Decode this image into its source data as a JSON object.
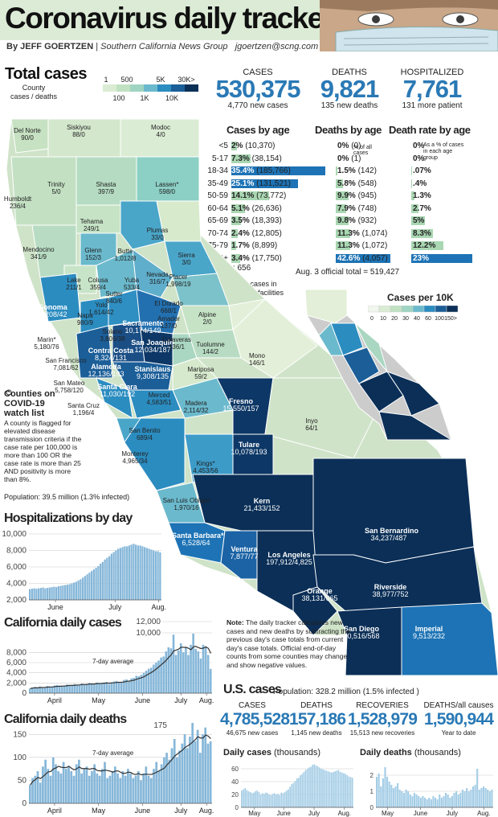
{
  "header": {
    "title": "Coronavirus daily tracker",
    "byline_name": "By JEFF GOERTZEN",
    "byline_org": "Southern California News Group",
    "byline_email": "jgoertzen@scng.com"
  },
  "total": {
    "title": "Total cases",
    "legend_label": "County\ncases / deaths",
    "legend_top": [
      "1",
      "500",
      "5K",
      "30K>"
    ],
    "legend_bottom": [
      "100",
      "1K",
      "10K"
    ]
  },
  "stats": {
    "cases": {
      "label": "CASES",
      "value": "530,375",
      "sub": "4,770 new cases"
    },
    "deaths": {
      "label": "DEATHS",
      "value": "9,821",
      "sub": "135 new deaths"
    },
    "hosp": {
      "label": "HOSPITALIZED",
      "value": "7,761",
      "sub": "131 more patient"
    }
  },
  "age": {
    "cases_title": "Cases by age",
    "deaths_title": "Deaths by age",
    "rate_title": "Death rate by age",
    "deaths_note": "% of all cases",
    "rate_note": "As a % of cases in each age group",
    "missing": "Missing: 656",
    "official": "Aug. 3 official total = 519,427",
    "rows": [
      {
        "age": "<5",
        "cpct": "2%",
        "ccnt": "(10,370)",
        "cv": 2,
        "dpct": "0%",
        "dcnt": "(0)",
        "dv": 0,
        "rate": "0%",
        "rv": 0
      },
      {
        "age": "5-17",
        "cpct": "7.3%",
        "ccnt": "(38,154)",
        "cv": 7.3,
        "dpct": "0%",
        "dcnt": "(1)",
        "dv": 0,
        "rate": "0%",
        "rv": 0
      },
      {
        "age": "18-34",
        "cpct": "35.4%",
        "ccnt": "(185,766)",
        "cv": 35.4,
        "dpct": "1.5%",
        "dcnt": "(142)",
        "dv": 1.5,
        "rate": ".07%",
        "rv": 0.07
      },
      {
        "age": "35-49",
        "cpct": "25.1%",
        "ccnt": "(131,521)",
        "cv": 25.1,
        "dpct": "5.8%",
        "dcnt": "(548)",
        "dv": 5.8,
        "rate": ".4%",
        "rv": 0.4
      },
      {
        "age": "50-59",
        "cpct": "14.1%",
        "ccnt": "(73,772)",
        "cv": 14.1,
        "dpct": "9.9%",
        "dcnt": "(945)",
        "dv": 9.9,
        "rate": "1.3%",
        "rv": 1.3
      },
      {
        "age": "60-64",
        "cpct": "5.1%",
        "ccnt": "(26,636)",
        "cv": 5.1,
        "dpct": "7.9%",
        "dcnt": "(748)",
        "dv": 7.9,
        "rate": "2.7%",
        "rv": 2.7
      },
      {
        "age": "65-69",
        "cpct": "3.5%",
        "ccnt": "(18,393)",
        "cv": 3.5,
        "dpct": "9.8%",
        "dcnt": "(932)",
        "dv": 9.8,
        "rate": "5%",
        "rv": 5
      },
      {
        "age": "70-74",
        "cpct": "2.4%",
        "ccnt": "(12,805)",
        "cv": 2.4,
        "dpct": "11.3%",
        "dcnt": "(1,074)",
        "dv": 11.3,
        "rate": "8.3%",
        "rv": 8.3
      },
      {
        "age": "75-79",
        "cpct": "1.7%",
        "ccnt": "(8,899)",
        "cv": 1.7,
        "dpct": "11.3%",
        "dcnt": "(1,072)",
        "dv": 11.3,
        "rate": "12.2%",
        "rv": 12.2
      },
      {
        "age": "80+",
        "cpct": "3.4%",
        "ccnt": "(17,750)",
        "cv": 3.4,
        "dpct": "42.6%",
        "dcnt": "(4,057)",
        "dv": 42.6,
        "rate": "23%",
        "rv": 23
      }
    ]
  },
  "map": {
    "includes": "*Includes cases in correctional facilities",
    "per10k_title": "Cases per 10K",
    "per10k_ticks": [
      "0",
      "10",
      "20",
      "30",
      "40",
      "60",
      "100",
      "150>"
    ],
    "watch_title": "Counties on COVID-19 watch list",
    "watch_text": "A county is flagged for elevated disease transmission criteria if the case rate per 100,000 is more than 100 OR the case rate is more than 25 AND positivity is more than 8%.",
    "population": "Population: 39.5 million (1.3% infected)",
    "counties": [
      {
        "n": "Del Norte",
        "v": "90/0"
      },
      {
        "n": "Siskiyou",
        "v": "88/0"
      },
      {
        "n": "Modoc",
        "v": "4/0"
      },
      {
        "n": "Trinity",
        "v": "5/0"
      },
      {
        "n": "Shasta",
        "v": "397/9"
      },
      {
        "n": "Lassen*",
        "v": "598/0"
      },
      {
        "n": "Humboldt",
        "v": "236/4"
      },
      {
        "n": "Tehama",
        "v": "249/1"
      },
      {
        "n": "Plumas",
        "v": "33/0"
      },
      {
        "n": "Mendocino",
        "v": "341/9"
      },
      {
        "n": "Glenn",
        "v": "152/3"
      },
      {
        "n": "Butte",
        "v": "1,012/8"
      },
      {
        "n": "Sierra",
        "v": "3/0"
      },
      {
        "n": "Nevada",
        "v": "316/7"
      },
      {
        "n": "Colusa",
        "v": "359/4"
      },
      {
        "n": "Lake",
        "v": "211/1"
      },
      {
        "n": "Yuba",
        "v": "533/4"
      },
      {
        "n": "Placer",
        "v": "1,998/19"
      },
      {
        "n": "Sutter",
        "v": "840/6"
      },
      {
        "n": "El Dorado",
        "v": "668/1"
      },
      {
        "n": "Sonoma",
        "v": "3,208/42"
      },
      {
        "n": "Yolo",
        "v": "1,614/42"
      },
      {
        "n": "Napa",
        "v": "980/9"
      },
      {
        "n": "Sacramento",
        "v": "10,174/149"
      },
      {
        "n": "Alpine",
        "v": "2/0"
      },
      {
        "n": "Amador",
        "v": "137/0"
      },
      {
        "n": "Solano",
        "v": "3,806/38"
      },
      {
        "n": "Marin*",
        "v": "5,180/76"
      },
      {
        "n": "Contra Costa",
        "v": "8,324/131"
      },
      {
        "n": "San Joaquin",
        "v": "12,034/187"
      },
      {
        "n": "Calaveras",
        "v": "136/1"
      },
      {
        "n": "Tuolumne",
        "v": "144/2"
      },
      {
        "n": "San Francisco",
        "v": "7,081/62"
      },
      {
        "n": "Mono",
        "v": "146/1"
      },
      {
        "n": "Alameda",
        "v": "12,136/193"
      },
      {
        "n": "Stanislaus",
        "v": "9,308/135"
      },
      {
        "n": "Mariposa",
        "v": "59/2"
      },
      {
        "n": "San Mateo",
        "v": "5,758/120"
      },
      {
        "n": "Santa Clara",
        "v": "11,030/192"
      },
      {
        "n": "Merced",
        "v": "4,583/51"
      },
      {
        "n": "Santa Cruz",
        "v": "1,196/4"
      },
      {
        "n": "Madera",
        "v": "2,114/32"
      },
      {
        "n": "Fresno",
        "v": "15,550/157"
      },
      {
        "n": "Inyo",
        "v": "64/1"
      },
      {
        "n": "San Benito",
        "v": "689/4"
      },
      {
        "n": "Tulare",
        "v": "10,078/193"
      },
      {
        "n": "Monterey",
        "v": "4,965/34"
      },
      {
        "n": "Kings*",
        "v": "4,453/56"
      },
      {
        "n": "Kern",
        "v": "21,433/152"
      },
      {
        "n": "San Luis Obispo",
        "v": "1,970/16"
      },
      {
        "n": "San Bernardino",
        "v": "34,237/487"
      },
      {
        "n": "Santa Barbara*",
        "v": "6,528/64"
      },
      {
        "n": "Ventura",
        "v": "7,877/77"
      },
      {
        "n": "Los Angeles",
        "v": "197,912/4,825"
      },
      {
        "n": "Riverside",
        "v": "38,977/752"
      },
      {
        "n": "Orange",
        "v": "38,131/665"
      },
      {
        "n": "San Diego",
        "v": "30,516/568"
      },
      {
        "n": "Imperial",
        "v": "9,513/232"
      }
    ]
  },
  "note": {
    "head": "Note:",
    "body": "The daily tracker calculates new cases and new deaths by subtracting the previous day's case totals from current day's case totals. Official end-of-day counts from some counties may change and show negative values."
  },
  "us": {
    "title": "U.S. cases",
    "population": "Population: 328.2 million (1.5% infected )",
    "cases": {
      "label": "CASES",
      "value": "4,785,528",
      "sub": "46,675  new cases"
    },
    "deaths": {
      "label": "DEATHS",
      "value": "157,186",
      "sub": "1,145 new deaths"
    },
    "recoveries": {
      "label": "RECOVERIES",
      "value": "1,528,979",
      "sub": "15,513 new recoveries"
    },
    "allcauses": {
      "label": "DEATHS/all causes",
      "value": "1,590,944",
      "sub": "Year to date"
    }
  },
  "chart_data": [
    {
      "type": "bar",
      "title": "Hospitalizations by day",
      "y_ticks": [
        "10,000",
        "8,000",
        "6,000",
        "4,000",
        "2,000"
      ],
      "x_ticks": [
        "June",
        "July",
        "Aug."
      ],
      "ylim": [
        2000,
        10000
      ],
      "values": [
        3300,
        3350,
        3400,
        3350,
        3400,
        3450,
        3500,
        3400,
        3450,
        3500,
        3550,
        3600,
        3550,
        3650,
        3700,
        3750,
        3800,
        3850,
        3900,
        4000,
        4100,
        4200,
        4350,
        4500,
        4700,
        4900,
        5100,
        5300,
        5500,
        5700,
        5900,
        6100,
        6400,
        6600,
        6900,
        7100,
        7300,
        7600,
        7800,
        8000,
        8200,
        8300,
        8400,
        8500,
        8500,
        8600,
        8700,
        8800,
        8700,
        8600,
        8600,
        8500,
        8400,
        8300,
        8200,
        8100,
        8000,
        7900,
        7900,
        7761
      ]
    },
    {
      "type": "bar",
      "title": "California daily cases",
      "y_ticks": [
        "8,000",
        "6,000",
        "4,000",
        "2,000",
        "0"
      ],
      "extra_ticks": [
        "12,000",
        "10,000"
      ],
      "x_ticks": [
        "April",
        "May",
        "June",
        "July",
        "Aug."
      ],
      "annotation": "7-day average",
      "ylim": [
        0,
        12000
      ],
      "values": [
        900,
        1100,
        1200,
        1000,
        1300,
        1200,
        1100,
        1400,
        1300,
        1200,
        1500,
        1600,
        1400,
        1300,
        1500,
        1700,
        1600,
        1500,
        1800,
        1700,
        1600,
        1900,
        1700,
        1800,
        2000,
        1900,
        1700,
        2100,
        2000,
        1900,
        2100,
        2200,
        1800,
        2000,
        2300,
        2400,
        2100,
        2200,
        2600,
        2700,
        2300,
        2900,
        3000,
        3400,
        3300,
        3600,
        4000,
        4400,
        4800,
        5000,
        5600,
        6000,
        6400,
        7000,
        7200,
        8200,
        9000,
        8800,
        11500,
        7500,
        8400,
        9800,
        8000,
        9000,
        7500,
        9500,
        11700,
        8700,
        8200,
        6800,
        9500,
        9200,
        7500,
        4770
      ]
    },
    {
      "type": "bar",
      "title": "California daily deaths",
      "y_ticks": [
        "150",
        "100",
        "50",
        "0"
      ],
      "extra_ticks": [
        "175"
      ],
      "x_ticks": [
        "April",
        "May",
        "June",
        "July",
        "Aug."
      ],
      "annotation": "7-day average",
      "ylim": [
        0,
        175
      ],
      "values": [
        40,
        55,
        60,
        70,
        45,
        80,
        95,
        75,
        60,
        100,
        85,
        70,
        65,
        90,
        75,
        80,
        70,
        60,
        85,
        95,
        65,
        75,
        80,
        60,
        70,
        85,
        65,
        60,
        75,
        90,
        55,
        60,
        70,
        80,
        65,
        55,
        70,
        60,
        75,
        65,
        55,
        60,
        70,
        50,
        65,
        80,
        60,
        55,
        75,
        90,
        70,
        85,
        100,
        110,
        95,
        120,
        140,
        100,
        115,
        130,
        150,
        120,
        145,
        175,
        135,
        160,
        110,
        150,
        165,
        130,
        135
      ]
    },
    {
      "type": "bar",
      "title": "Daily cases",
      "title_unit": "(thousands)",
      "y_ticks": [
        "60",
        "40",
        "20",
        "0"
      ],
      "x_ticks": [
        "May",
        "June",
        "July",
        "Aug."
      ],
      "ylim": [
        0,
        70
      ],
      "values": [
        26,
        28,
        30,
        27,
        25,
        24,
        22,
        23,
        25,
        26,
        24,
        20,
        22,
        21,
        23,
        22,
        20,
        19,
        21,
        22,
        20,
        21,
        19,
        23,
        22,
        24,
        26,
        28,
        32,
        36,
        38,
        41,
        45,
        46,
        50,
        52,
        55,
        58,
        60,
        62,
        63,
        66,
        67,
        65,
        64,
        62,
        60,
        59,
        58,
        57,
        56,
        55,
        54,
        55,
        56,
        57,
        58,
        55,
        54,
        53,
        52,
        50,
        48,
        47,
        46
      ]
    },
    {
      "type": "bar",
      "title": "Daily deaths",
      "title_unit": "(thousands)",
      "y_ticks": [
        "2",
        "1",
        "0"
      ],
      "x_ticks": [
        "May",
        "June",
        "July",
        "Aug."
      ],
      "ylim": [
        0,
        2.8
      ],
      "values": [
        1.9,
        2.1,
        1.3,
        1.8,
        2.5,
        1.9,
        1.6,
        1.4,
        1.2,
        1.3,
        1.5,
        1.1,
        1.0,
        0.9,
        1.1,
        1.0,
        0.8,
        0.7,
        0.9,
        0.8,
        0.7,
        0.6,
        0.7,
        0.6,
        0.5,
        0.6,
        0.5,
        0.7,
        0.6,
        0.5,
        0.8,
        0.6,
        0.7,
        0.9,
        0.8,
        0.6,
        0.7,
        0.9,
        1.0,
        0.8,
        0.9,
        1.1,
        1.0,
        1.2,
        1.0,
        1.1,
        1.3,
        1.4,
        2.4,
        1.1,
        1.2,
        1.3,
        1.2,
        1.1,
        1.0,
        1.1
      ]
    }
  ]
}
